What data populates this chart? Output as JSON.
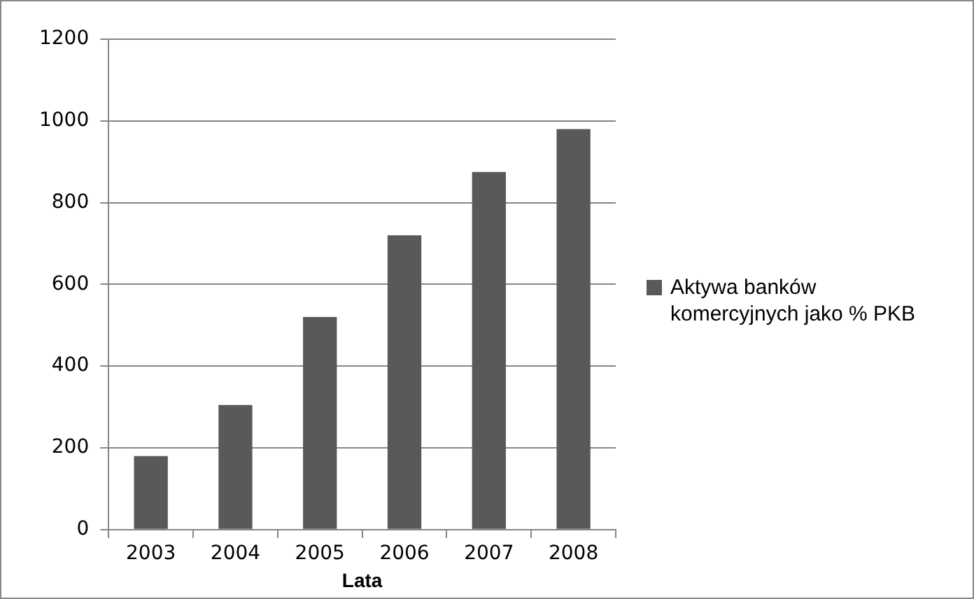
{
  "chart_data": {
    "type": "bar",
    "xlabel": "Lata",
    "categories": [
      "2003",
      "2004",
      "2005",
      "2006",
      "2007",
      "2008"
    ],
    "series": [
      {
        "name": "Aktywa banków komercyjnych jako % PKB",
        "color": "#595959",
        "values": [
          180,
          305,
          520,
          720,
          875,
          980
        ]
      }
    ],
    "ylim": [
      0,
      1200
    ],
    "yticks": [
      0,
      200,
      400,
      600,
      800,
      1000,
      1200
    ],
    "grid": "y",
    "legend": "right"
  }
}
